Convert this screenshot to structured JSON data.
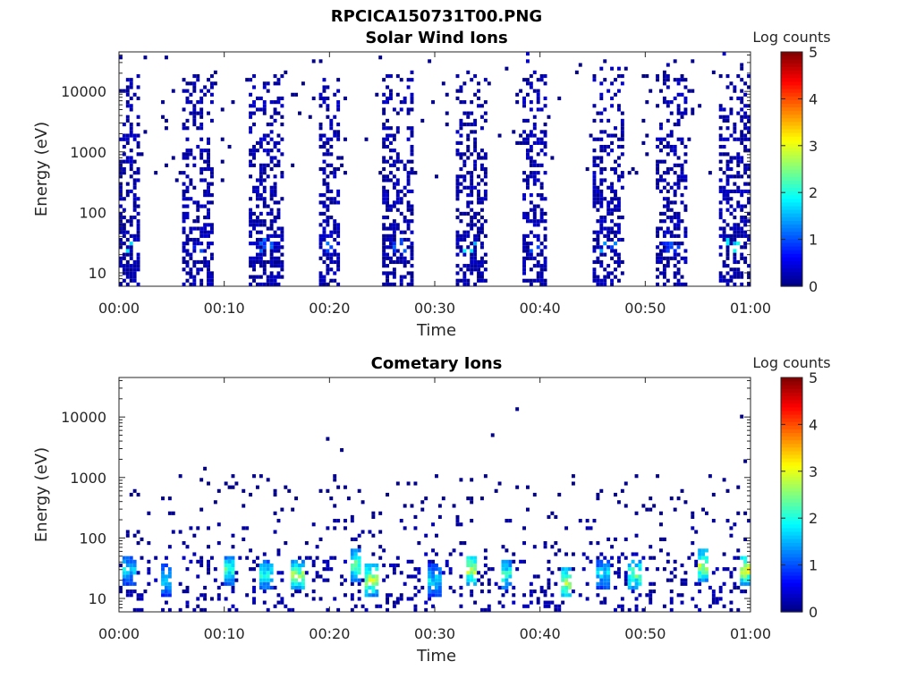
{
  "figure_title": "RPCICA150731T00.PNG",
  "chart_data": [
    {
      "type": "heatmap",
      "title": "Solar Wind Ions",
      "xlabel": "Time",
      "ylabel": "Energy (eV)",
      "x_tick_labels": [
        "00:00",
        "00:10",
        "00:20",
        "00:30",
        "00:40",
        "00:50",
        "01:00"
      ],
      "x_range_minutes": [
        0,
        60
      ],
      "y_scale": "log",
      "y_range": [
        6,
        45000
      ],
      "y_tick_values": [
        10,
        100,
        1000,
        10000
      ],
      "y_tick_labels": [
        "10",
        "100",
        "1000",
        "10000"
      ],
      "colorbar": {
        "label": "Log counts",
        "range": [
          0,
          5
        ],
        "ticks": [
          "0",
          "1",
          "2",
          "3",
          "4",
          "5"
        ],
        "colormap": "jet"
      },
      "bursts_minutes": [
        {
          "t": 0.8,
          "w": 2.5,
          "peak_energy_ev": 30,
          "peak_log": 2.0
        },
        {
          "t": 7.5,
          "w": 3.0,
          "peak_energy_ev": 30,
          "peak_log": 1.2
        },
        {
          "t": 14.0,
          "w": 3.0,
          "peak_energy_ev": 30,
          "peak_log": 1.2
        },
        {
          "t": 20.0,
          "w": 2.0,
          "peak_energy_ev": 30,
          "peak_log": 1.2
        },
        {
          "t": 26.5,
          "w": 2.8,
          "peak_energy_ev": 30,
          "peak_log": 1.2
        },
        {
          "t": 33.5,
          "w": 3.0,
          "peak_energy_ev": 30,
          "peak_log": 2.0
        },
        {
          "t": 39.5,
          "w": 2.0,
          "peak_energy_ev": 30,
          "peak_log": 1.2
        },
        {
          "t": 46.5,
          "w": 3.0,
          "peak_energy_ev": 30,
          "peak_log": 1.5
        },
        {
          "t": 52.5,
          "w": 3.0,
          "peak_energy_ev": 30,
          "peak_log": 1.2
        },
        {
          "t": 58.5,
          "w": 2.8,
          "peak_energy_ev": 30,
          "peak_log": 2.0
        }
      ]
    },
    {
      "type": "heatmap",
      "title": "Cometary Ions",
      "xlabel": "Time",
      "ylabel": "Energy (eV)",
      "x_tick_labels": [
        "00:00",
        "00:10",
        "00:20",
        "00:30",
        "00:40",
        "00:50",
        "01:00"
      ],
      "x_range_minutes": [
        0,
        60
      ],
      "y_scale": "log",
      "y_range": [
        6,
        45000
      ],
      "y_tick_values": [
        10,
        100,
        1000,
        10000
      ],
      "y_tick_labels": [
        "10",
        "100",
        "1000",
        "10000"
      ],
      "colorbar": {
        "label": "Log counts",
        "range": [
          0,
          5
        ],
        "ticks": [
          "0",
          "1",
          "2",
          "3",
          "4",
          "5"
        ],
        "colormap": "jet"
      },
      "bursts_minutes": [
        {
          "t": 1.0,
          "w": 1.2,
          "peak_energy_ev": 30,
          "peak_log": 2.0
        },
        {
          "t": 4.5,
          "w": 1.2,
          "peak_energy_ev": 20,
          "peak_log": 2.0
        },
        {
          "t": 10.5,
          "w": 1.2,
          "peak_energy_ev": 30,
          "peak_log": 2.5
        },
        {
          "t": 14.0,
          "w": 1.0,
          "peak_energy_ev": 25,
          "peak_log": 2.3
        },
        {
          "t": 17.0,
          "w": 1.2,
          "peak_energy_ev": 25,
          "peak_log": 3.0
        },
        {
          "t": 22.5,
          "w": 1.2,
          "peak_energy_ev": 35,
          "peak_log": 2.8
        },
        {
          "t": 24.0,
          "w": 1.2,
          "peak_energy_ev": 20,
          "peak_log": 3.2
        },
        {
          "t": 30.0,
          "w": 1.2,
          "peak_energy_ev": 20,
          "peak_log": 2.0
        },
        {
          "t": 33.5,
          "w": 1.2,
          "peak_energy_ev": 30,
          "peak_log": 3.3
        },
        {
          "t": 36.8,
          "w": 1.2,
          "peak_energy_ev": 25,
          "peak_log": 2.5
        },
        {
          "t": 42.5,
          "w": 1.2,
          "peak_energy_ev": 18,
          "peak_log": 3.3
        },
        {
          "t": 46.0,
          "w": 1.5,
          "peak_energy_ev": 25,
          "peak_log": 2.0
        },
        {
          "t": 49.0,
          "w": 1.2,
          "peak_energy_ev": 25,
          "peak_log": 2.8
        },
        {
          "t": 55.5,
          "w": 1.2,
          "peak_energy_ev": 35,
          "peak_log": 3.3
        },
        {
          "t": 59.5,
          "w": 1.2,
          "peak_energy_ev": 30,
          "peak_log": 3.5
        }
      ]
    }
  ]
}
